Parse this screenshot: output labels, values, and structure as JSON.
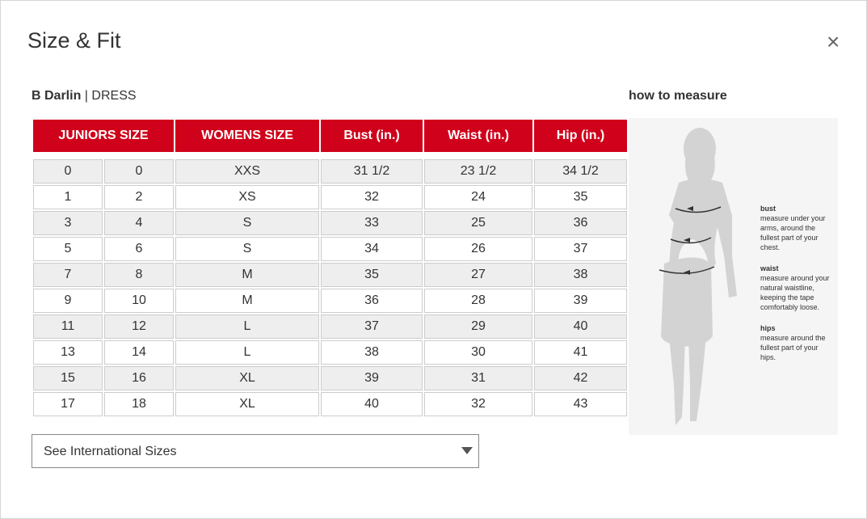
{
  "header": {
    "title": "Size & Fit",
    "close": "×"
  },
  "product": {
    "brand": "B Darlin",
    "separator": "|",
    "type": "DRESS"
  },
  "table": {
    "headers": [
      "JUNIORS SIZE",
      "WOMENS SIZE",
      "Bust (in.)",
      "Waist (in.)",
      "Hip (in.)"
    ],
    "rows": [
      [
        "0",
        "0",
        "XXS",
        "31 1/2",
        "23 1/2",
        "34 1/2"
      ],
      [
        "1",
        "2",
        "XS",
        "32",
        "24",
        "35"
      ],
      [
        "3",
        "4",
        "S",
        "33",
        "25",
        "36"
      ],
      [
        "5",
        "6",
        "S",
        "34",
        "26",
        "37"
      ],
      [
        "7",
        "8",
        "M",
        "35",
        "27",
        "38"
      ],
      [
        "9",
        "10",
        "M",
        "36",
        "28",
        "39"
      ],
      [
        "11",
        "12",
        "L",
        "37",
        "29",
        "40"
      ],
      [
        "13",
        "14",
        "L",
        "38",
        "30",
        "41"
      ],
      [
        "15",
        "16",
        "XL",
        "39",
        "31",
        "42"
      ],
      [
        "17",
        "18",
        "XL",
        "40",
        "32",
        "43"
      ]
    ]
  },
  "dropdown": {
    "label": "See International Sizes"
  },
  "how_to_measure": {
    "title": "how to measure",
    "items": [
      {
        "label": "bust",
        "text": "measure under your arms, around the fullest part of your chest."
      },
      {
        "label": "waist",
        "text": "measure around your natural waistline, keeping the tape comfortably loose."
      },
      {
        "label": "hips",
        "text": "measure around the fullest part of your hips."
      }
    ]
  }
}
